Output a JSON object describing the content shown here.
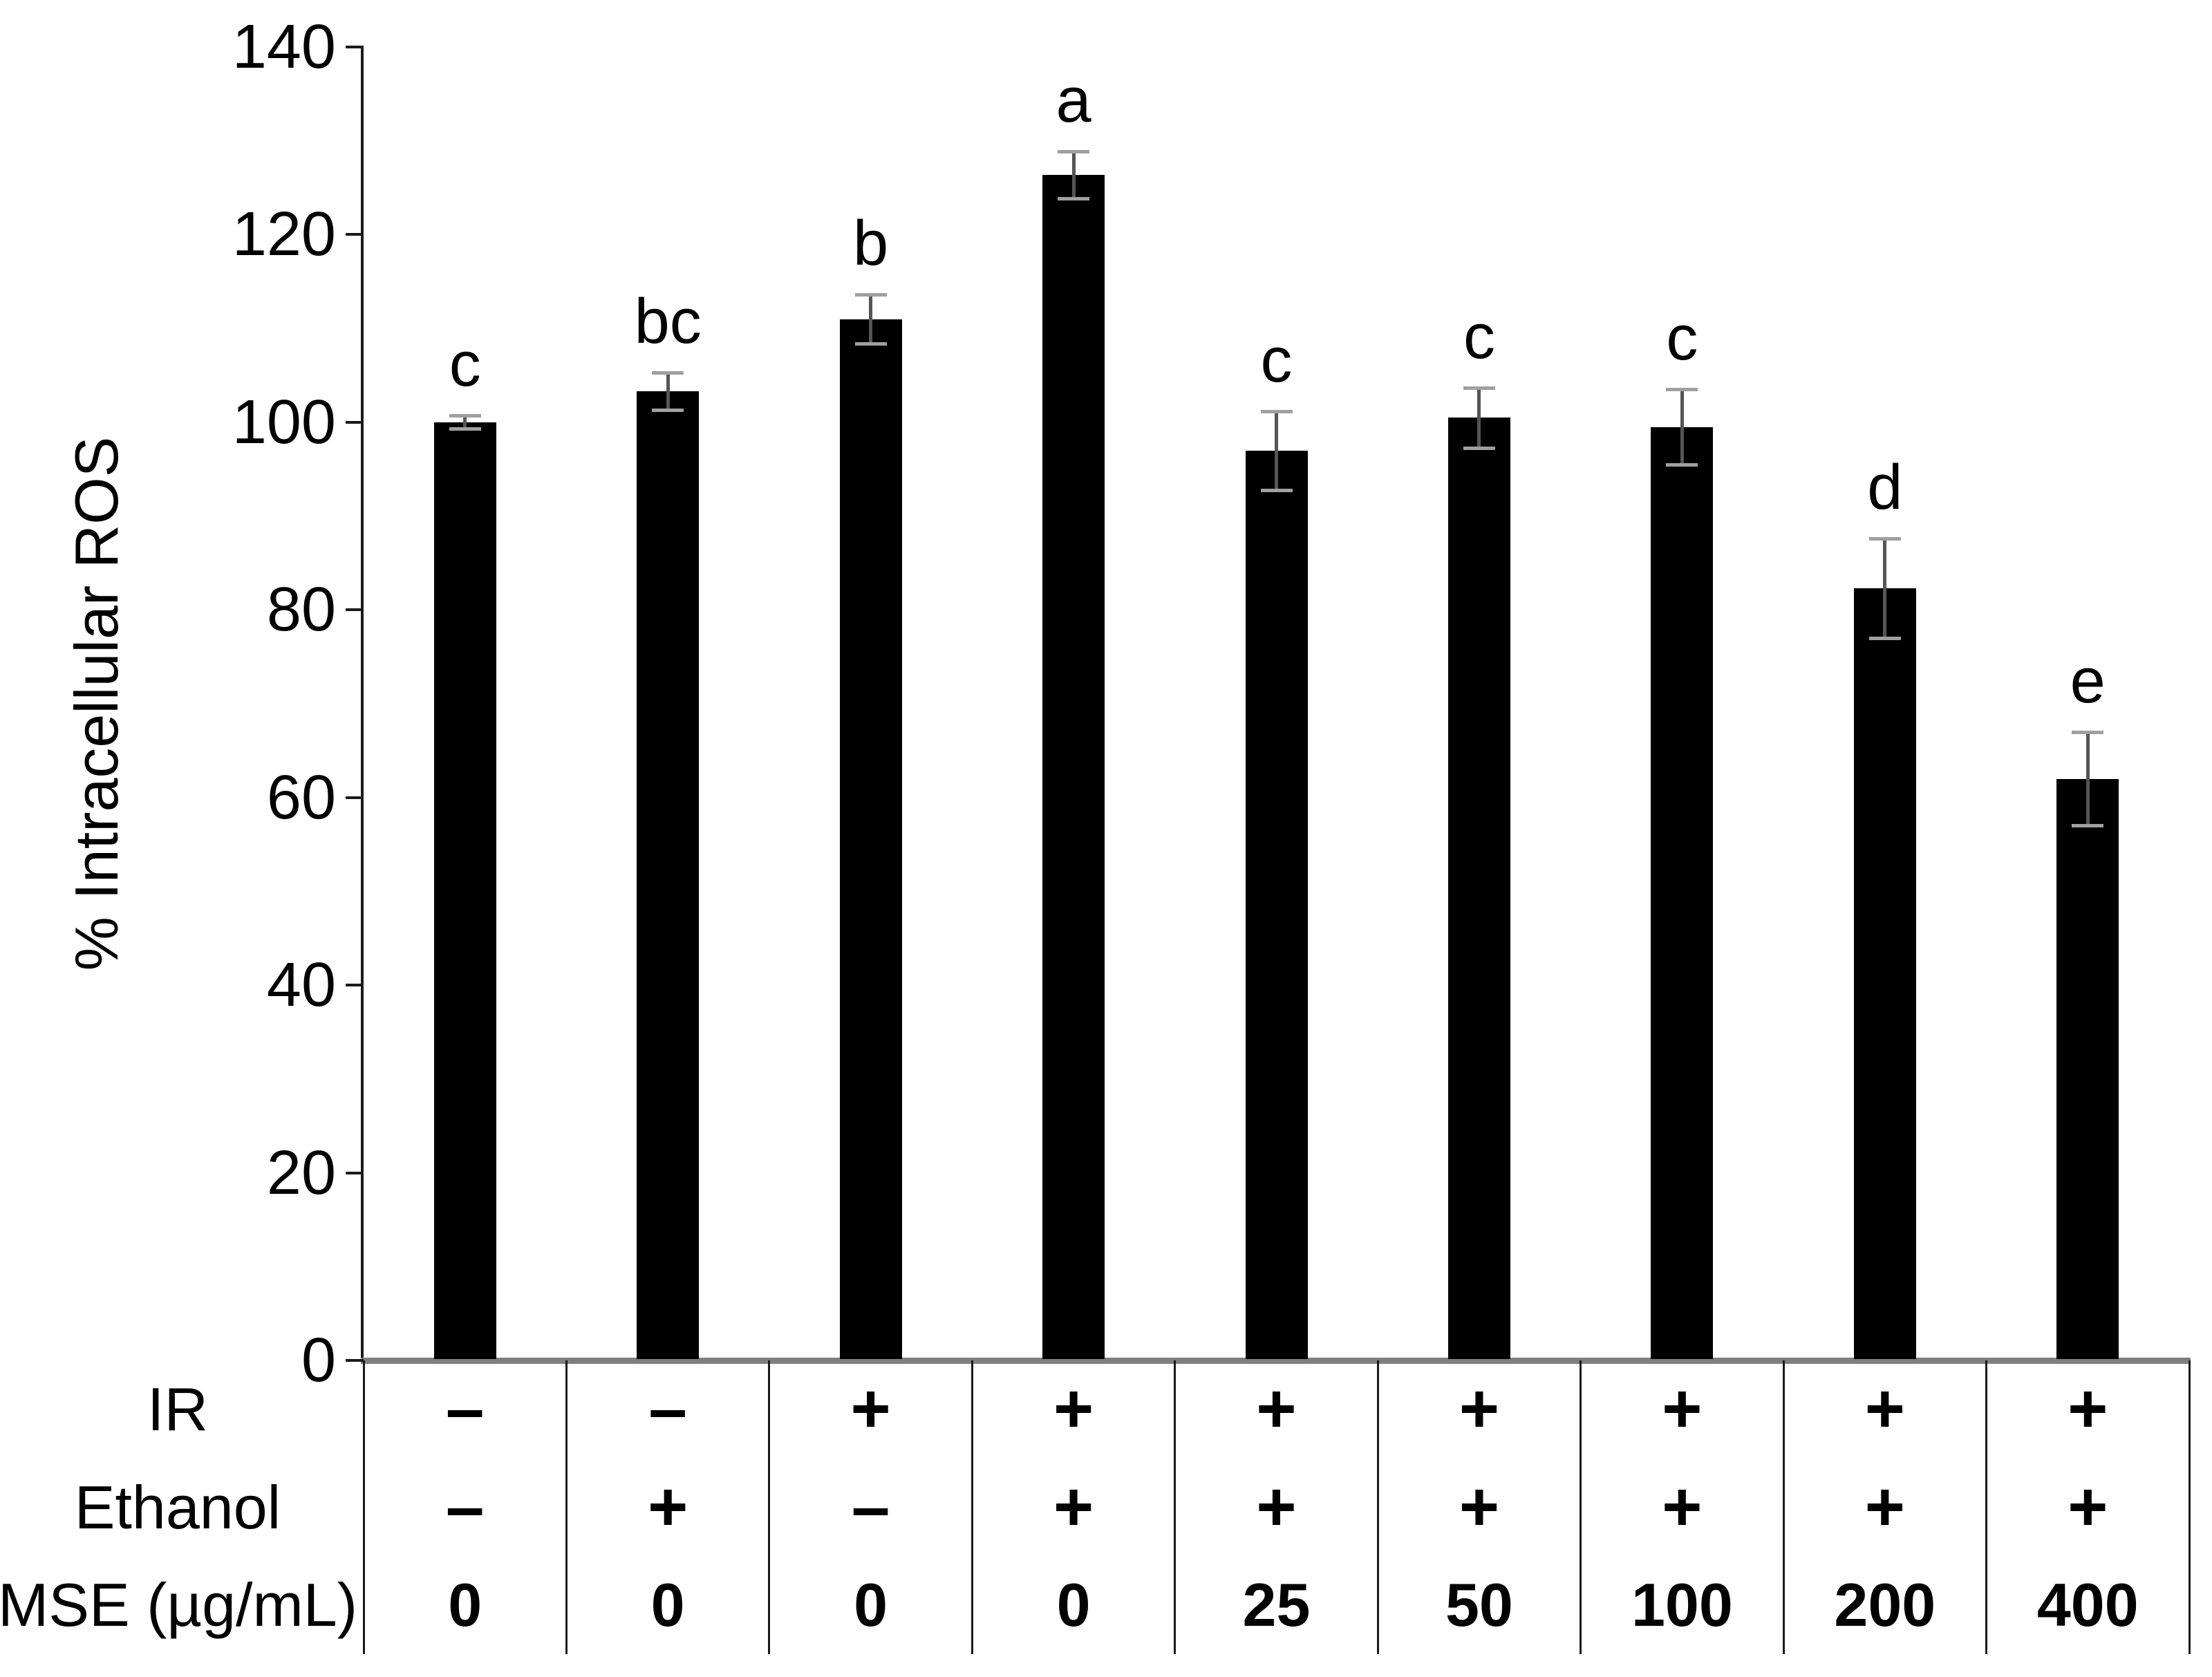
{
  "figure_title": "",
  "chart_data": {
    "type": "bar",
    "title": "",
    "xlabel": "",
    "ylabel": "% Intracellular ROS",
    "ylim": [
      0,
      140
    ],
    "yticks": [
      0,
      20,
      40,
      60,
      80,
      100,
      120,
      140
    ],
    "grid": false,
    "legend": "none",
    "bar_color": "#000000",
    "error_bar_color": "#555555",
    "error_cap_color": "#a0a0a0",
    "axis_color": "#1a1a1a",
    "bars": [
      {
        "value": 100.0,
        "error": 0.7,
        "letter": "c",
        "ir": "–",
        "ethanol": "–",
        "mse": "0"
      },
      {
        "value": 103.3,
        "error": 2.0,
        "letter": "bc",
        "ir": "–",
        "ethanol": "+",
        "mse": "0"
      },
      {
        "value": 111.0,
        "error": 2.6,
        "letter": "b",
        "ir": "+",
        "ethanol": "–",
        "mse": "0"
      },
      {
        "value": 126.4,
        "error": 2.5,
        "letter": "a",
        "ir": "+",
        "ethanol": "+",
        "mse": "0"
      },
      {
        "value": 97.0,
        "error": 4.2,
        "letter": "c",
        "ir": "+",
        "ethanol": "+",
        "mse": "25"
      },
      {
        "value": 100.5,
        "error": 3.2,
        "letter": "c",
        "ir": "+",
        "ethanol": "+",
        "mse": "50"
      },
      {
        "value": 99.5,
        "error": 4.0,
        "letter": "c",
        "ir": "+",
        "ethanol": "+",
        "mse": "100"
      },
      {
        "value": 82.3,
        "error": 5.3,
        "letter": "d",
        "ir": "+",
        "ethanol": "+",
        "mse": "200"
      },
      {
        "value": 62.0,
        "error": 5.0,
        "letter": "e",
        "ir": "+",
        "ethanol": "+",
        "mse": "400"
      }
    ],
    "table": {
      "row_labels": [
        "IR",
        "Ethanol",
        "MSE (µg/mL)"
      ],
      "row_keys": [
        "ir",
        "ethanol",
        "mse"
      ]
    }
  }
}
